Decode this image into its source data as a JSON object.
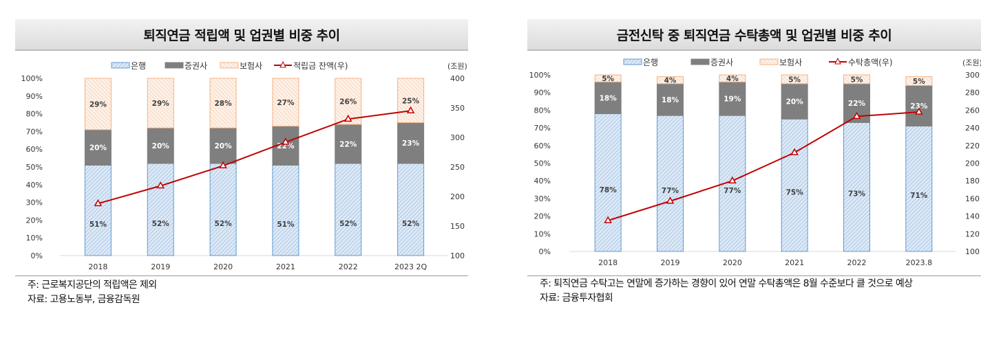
{
  "chart_data": [
    {
      "type": "bar",
      "stacked": true,
      "title": "퇴직연금 적립액  및 업권별 비중 추이",
      "categories": [
        "2018",
        "2019",
        "2020",
        "2021",
        "2022",
        "2023 2Q"
      ],
      "series": [
        {
          "name": "은행",
          "values": [
            51,
            52,
            52,
            51,
            52,
            52
          ],
          "labels": [
            "51%",
            "52%",
            "52%",
            "51%",
            "52%",
            "52%"
          ],
          "color": "#bdd7ee",
          "border": "#5b9bd5"
        },
        {
          "name": "증권사",
          "values": [
            20,
            20,
            20,
            22,
            22,
            23
          ],
          "labels": [
            "20%",
            "20%",
            "20%",
            "22%",
            "22%",
            "23%"
          ],
          "color": "#7f7f7f",
          "border": "#7f7f7f"
        },
        {
          "name": "보험사",
          "values": [
            29,
            29,
            28,
            27,
            26,
            25
          ],
          "labels": [
            "29%",
            "29%",
            "28%",
            "27%",
            "26%",
            "25%"
          ],
          "color": "#fce4d6",
          "border": "#f4b183"
        },
        {
          "name": "적립금 잔액(우)",
          "type": "line",
          "axis": "right",
          "values": [
            188,
            218,
            252,
            292,
            331,
            345
          ],
          "color": "#c00000"
        }
      ],
      "ylim": [
        0,
        100
      ],
      "yticks": [
        "0%",
        "10%",
        "20%",
        "30%",
        "40%",
        "50%",
        "60%",
        "70%",
        "80%",
        "90%",
        "100%"
      ],
      "y2lim": [
        100,
        400
      ],
      "y2ticks": [
        "100",
        "150",
        "200",
        "250",
        "300",
        "350",
        "400"
      ],
      "y2unit": "(조원)",
      "legend": "top",
      "grid": false,
      "notes": [
        "주: 근로복지공단의 적립액은 제외",
        "자료: 고용노동부, 금융감독원"
      ]
    },
    {
      "type": "bar",
      "stacked": true,
      "title": "금전신탁 중 퇴직연금 수탁총액 및 업권별 비중 추이",
      "categories": [
        "2018",
        "2019",
        "2020",
        "2021",
        "2022",
        "2023.8"
      ],
      "series": [
        {
          "name": "은행",
          "values": [
            78,
            77,
            77,
            75,
            73,
            71
          ],
          "labels": [
            "78%",
            "77%",
            "77%",
            "75%",
            "73%",
            "71%"
          ],
          "color": "#bdd7ee",
          "border": "#5b9bd5"
        },
        {
          "name": "증권사",
          "values": [
            18,
            18,
            19,
            20,
            22,
            23
          ],
          "labels": [
            "18%",
            "18%",
            "19%",
            "20%",
            "22%",
            "23%"
          ],
          "color": "#7f7f7f",
          "border": "#7f7f7f"
        },
        {
          "name": "보험사",
          "values": [
            5,
            4,
            4,
            5,
            5,
            5
          ],
          "labels": [
            "5%",
            "4%",
            "4%",
            "5%",
            "5%",
            "5%"
          ],
          "color": "#fce4d6",
          "border": "#f4b183"
        },
        {
          "name": "수탁총액(우)",
          "type": "line",
          "axis": "right",
          "values": [
            135,
            157,
            180,
            212,
            253,
            258
          ],
          "color": "#c00000"
        }
      ],
      "ylim": [
        0,
        100
      ],
      "yticks": [
        "0%",
        "10%",
        "20%",
        "30%",
        "40%",
        "50%",
        "60%",
        "70%",
        "80%",
        "90%",
        "100%"
      ],
      "y2lim": [
        100,
        300
      ],
      "y2ticks": [
        "100",
        "120",
        "140",
        "160",
        "180",
        "200",
        "220",
        "240",
        "260",
        "280",
        "300"
      ],
      "y2unit": "(조원)",
      "legend": "top",
      "grid": false,
      "notes": [
        "주: 퇴직연금 수탁고는 연말에 증가하는 경향이 있어 연말 수탁총액은 8월 수준보다 클 것으로 예상",
        "자료: 금융투자협회"
      ]
    }
  ]
}
